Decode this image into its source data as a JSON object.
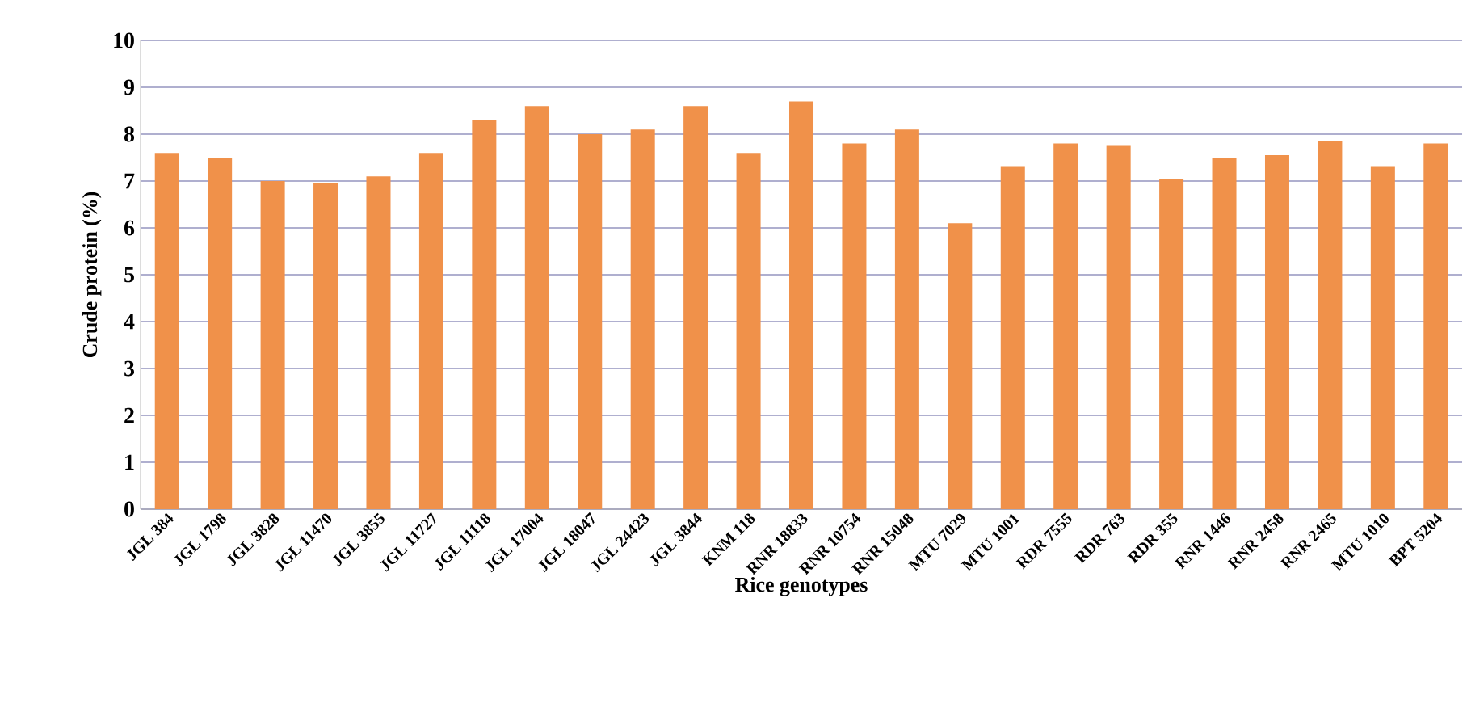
{
  "chart_data": {
    "type": "bar",
    "xlabel": "Rice genotypes",
    "ylabel": "Crude protein (%)",
    "categories": [
      "JGL 384",
      "JGL 1798",
      "JGL 3828",
      "JGL 11470",
      "JGL 3855",
      "JGL 11727",
      "JGL 11118",
      "JGL 17004",
      "JGL 18047",
      "JGL 24423",
      "JGL 3844",
      "KNM 118",
      "RNR 18833",
      "RNR 10754",
      "RNR 15048",
      "MTU 7029",
      "MTU 1001",
      "RDR 7555",
      "RDR 763",
      "RDR 355",
      "RNR 1446",
      "RNR 2458",
      "RNR 2465",
      "MTU 1010",
      "BPT 5204"
    ],
    "values": [
      7.6,
      7.5,
      7.0,
      6.95,
      7.1,
      7.6,
      8.3,
      8.6,
      8.0,
      8.1,
      8.6,
      7.6,
      8.7,
      7.8,
      8.1,
      6.1,
      7.3,
      7.8,
      7.75,
      7.05,
      7.5,
      7.55,
      7.85,
      7.3,
      7.8
    ],
    "color": "#f0914a",
    "ylim": [
      0,
      10
    ],
    "yticks": [
      0,
      1,
      2,
      3,
      4,
      5,
      6,
      7,
      8,
      9,
      10
    ],
    "grid": "y"
  }
}
